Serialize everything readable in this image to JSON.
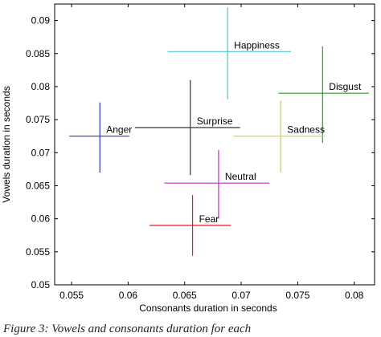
{
  "caption": "Figure 3: Vowels and consonants duration for each",
  "chart_data": {
    "type": "scatter",
    "xlabel": "Consonants duration in seconds",
    "ylabel": "Vowels duration in seconds",
    "xlim": [
      0.0535,
      0.0818
    ],
    "ylim": [
      0.05,
      0.0925
    ],
    "xticks": [
      0.055,
      0.06,
      0.065,
      0.07,
      0.075,
      0.08
    ],
    "xtick_labels": [
      "0.055",
      "0.06",
      "0.065",
      "0.07",
      "0.075",
      "0.08"
    ],
    "yticks": [
      0.05,
      0.055,
      0.06,
      0.065,
      0.07,
      0.075,
      0.08,
      0.085,
      0.09
    ],
    "ytick_labels": [
      "0.05",
      "0.055",
      "0.06",
      "0.065",
      "0.07",
      "0.075",
      "0.08",
      "0.085",
      "0.09"
    ],
    "grid": false,
    "series": [
      {
        "name": "Happiness",
        "color": "#46c8d8",
        "x": 0.0688,
        "y": 0.0853,
        "x_range": [
          0.0635,
          0.0744
        ],
        "y_range": [
          0.0781,
          0.092
        ]
      },
      {
        "name": "Disgust",
        "color": "#2f9a2f",
        "x": 0.0772,
        "y": 0.079,
        "x_range": [
          0.0733,
          0.0813
        ],
        "y_range": [
          0.0715,
          0.0861
        ]
      },
      {
        "name": "Surprise",
        "color": "#333333",
        "x": 0.0655,
        "y": 0.0738,
        "x_range": [
          0.0606,
          0.0699
        ],
        "y_range": [
          0.0666,
          0.081
        ]
      },
      {
        "name": "Anger",
        "color": "#3333bb",
        "x": 0.0575,
        "y": 0.0725,
        "x_range": [
          0.0548,
          0.0601
        ],
        "y_range": [
          0.067,
          0.0776
        ]
      },
      {
        "name": "Sadness",
        "color": "#d4d41e",
        "x": 0.0735,
        "y": 0.0725,
        "x_range": [
          0.0693,
          0.0774
        ],
        "y_range": [
          0.067,
          0.0779
        ]
      },
      {
        "name": "Neutral",
        "color": "#c42fc4",
        "x": 0.068,
        "y": 0.0654,
        "x_range": [
          0.0632,
          0.0725
        ],
        "y_range": [
          0.06,
          0.0704
        ]
      },
      {
        "name": "Fear",
        "color": "#d42020",
        "x": 0.0657,
        "y": 0.059,
        "x_range": [
          0.0619,
          0.0691
        ],
        "y_range": [
          0.0544,
          0.0636
        ]
      }
    ]
  }
}
